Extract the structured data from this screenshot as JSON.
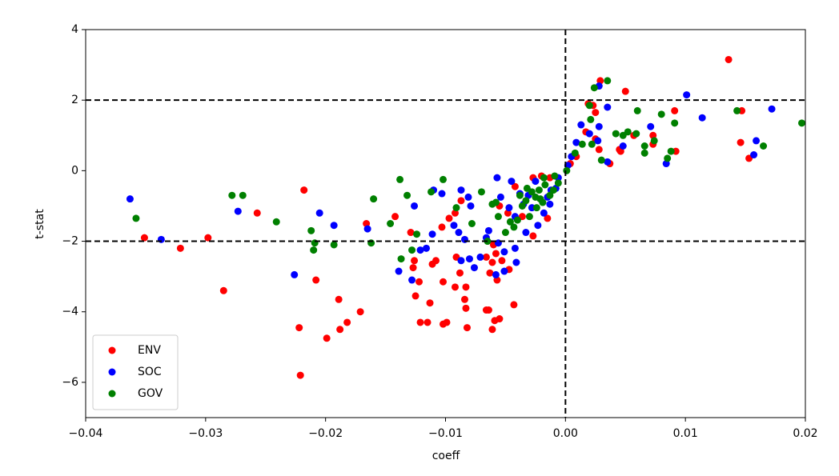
{
  "chart_data": {
    "type": "scatter",
    "xlabel": "coeff",
    "ylabel": "t-stat",
    "xlim": [
      -0.04,
      0.02
    ],
    "xticks": [
      {
        "value": -0.04,
        "label": "−0.04"
      },
      {
        "value": -0.03,
        "label": "−0.03"
      },
      {
        "value": -0.02,
        "label": "−0.02"
      },
      {
        "value": -0.01,
        "label": "−0.01"
      },
      {
        "value": 0,
        "label": "0.00"
      },
      0.01,
      0.02
    ],
    "ylim": [
      -7,
      4
    ],
    "yticks": [
      {
        "value": -6,
        "label": "−6"
      },
      {
        "value": -4,
        "label": "−4"
      },
      {
        "value": -2,
        "label": "−2"
      },
      0,
      2,
      4
    ],
    "hlines": [
      2,
      -2
    ],
    "vlines": [
      0
    ],
    "legend": "lower left",
    "series": [
      {
        "name": "ENV",
        "color": "#ff0000",
        "x": [
          0.0136,
          0.0029,
          0.005,
          0.0023,
          0.0025,
          0.0019,
          0.0147,
          0.0091,
          0.0146,
          0.0153,
          0.0073,
          0.0073,
          0.0092,
          0.0057,
          0.0045,
          0.0037,
          0.0025,
          0.0017,
          0.0009,
          0.0004,
          -0.0013,
          -0.0015,
          -0.0027,
          -0.0036,
          -0.0042,
          -0.0048,
          -0.0055,
          -0.006,
          -0.0061,
          -0.0053,
          -0.0047,
          -0.0057,
          -0.0058,
          -0.0063,
          -0.0066,
          -0.0066,
          -0.0064,
          -0.0059,
          -0.0055,
          -0.0061,
          -0.0043,
          -0.0082,
          -0.0083,
          -0.0084,
          -0.0083,
          -0.0088,
          -0.0092,
          -0.0091,
          -0.0102,
          -0.0108,
          -0.0111,
          -0.0113,
          -0.0115,
          -0.0121,
          -0.0102,
          -0.0099,
          -0.0125,
          -0.0127,
          -0.0126,
          -0.0122,
          -0.0129,
          -0.0142,
          -0.0103,
          -0.0097,
          -0.0092,
          -0.0087,
          -0.0171,
          -0.0182,
          -0.0188,
          -0.0199,
          -0.0222,
          -0.0221,
          -0.0189,
          -0.0208,
          -0.0285,
          -0.0321,
          -0.0298,
          -0.0351,
          -0.0257,
          -0.0218,
          -0.0166,
          -0.0027,
          -0.002,
          0.0028,
          0.0046
        ],
        "y": [
          3.15,
          2.55,
          2.25,
          1.85,
          1.65,
          1.9,
          1.7,
          1.7,
          0.8,
          0.35,
          0.75,
          1.0,
          0.55,
          1.0,
          0.6,
          0.2,
          0.9,
          1.1,
          0.4,
          0.2,
          -0.2,
          -1.35,
          -1.85,
          -1.3,
          -0.45,
          -1.2,
          -1.0,
          -2.1,
          -2.6,
          -2.55,
          -2.8,
          -3.1,
          -2.35,
          -2.9,
          -2.45,
          -3.95,
          -3.95,
          -4.25,
          -4.2,
          -4.5,
          -3.8,
          -4.45,
          -3.9,
          -3.65,
          -3.3,
          -2.9,
          -3.3,
          -2.45,
          -3.15,
          -2.55,
          -2.65,
          -3.75,
          -4.3,
          -4.3,
          -4.35,
          -4.3,
          -3.55,
          -2.75,
          -2.55,
          -3.15,
          -1.75,
          -1.3,
          -1.6,
          -1.35,
          -1.2,
          -0.85,
          -4.0,
          -4.3,
          -4.5,
          -4.75,
          -4.45,
          -5.8,
          -3.65,
          -3.1,
          -3.4,
          -2.2,
          -1.9,
          -1.9,
          -1.2,
          -0.55,
          -1.5,
          -0.2,
          -0.15,
          0.6,
          0.55
        ]
      },
      {
        "name": "SOC",
        "color": "#0000ff",
        "x": [
          0.0101,
          0.0028,
          0.0114,
          0.0172,
          0.0035,
          0.0071,
          0.0159,
          0.0157,
          0.0084,
          0.0048,
          0.0035,
          0.0028,
          0.0027,
          0.002,
          0.0013,
          0.0009,
          0.0005,
          0.0002,
          -0.0006,
          -0.0012,
          -0.0013,
          -0.0018,
          -0.0023,
          -0.0031,
          -0.0033,
          -0.0038,
          -0.0042,
          -0.0042,
          -0.0041,
          -0.0047,
          -0.0054,
          -0.0057,
          -0.0051,
          -0.0056,
          -0.0058,
          -0.0051,
          -0.0064,
          -0.0066,
          -0.0071,
          -0.0076,
          -0.008,
          -0.0084,
          -0.0087,
          -0.0089,
          -0.0093,
          -0.0079,
          -0.0081,
          -0.0087,
          -0.0103,
          -0.0111,
          -0.0116,
          -0.0121,
          -0.0128,
          -0.0139,
          -0.0126,
          -0.011,
          -0.0165,
          -0.0193,
          -0.0205,
          -0.0226,
          -0.0273,
          -0.0337,
          -0.0363,
          -0.0025,
          -0.0008,
          -0.0035,
          -0.0028,
          -0.0015,
          -0.0045
        ],
        "y": [
          2.15,
          2.4,
          1.5,
          1.75,
          1.8,
          1.25,
          0.85,
          0.45,
          0.2,
          0.7,
          0.25,
          1.25,
          0.85,
          1.05,
          1.3,
          0.8,
          0.4,
          0.15,
          -0.2,
          -0.55,
          -0.95,
          -1.2,
          -1.55,
          -0.7,
          -1.75,
          -0.65,
          -1.3,
          -2.2,
          -2.6,
          -1.05,
          -0.75,
          -0.2,
          -2.3,
          -2.05,
          -2.95,
          -2.85,
          -1.7,
          -1.9,
          -2.45,
          -2.75,
          -2.5,
          -1.95,
          -2.55,
          -1.75,
          -1.55,
          -1.0,
          -0.75,
          -0.55,
          -0.65,
          -1.8,
          -2.2,
          -2.25,
          -3.1,
          -2.85,
          -1.0,
          -0.55,
          -1.65,
          -1.55,
          -1.2,
          -2.95,
          -1.15,
          -1.95,
          -0.8,
          -0.3,
          -0.5,
          -0.95,
          -1.05,
          -0.75,
          -0.3
        ]
      },
      {
        "name": "GOV",
        "color": "#008000",
        "x": [
          0.0035,
          0.0024,
          0.002,
          0.0021,
          0.0143,
          0.0197,
          0.0165,
          0.0091,
          0.008,
          0.006,
          0.0052,
          0.0042,
          0.0048,
          0.0059,
          0.0066,
          0.0074,
          0.0066,
          0.0085,
          0.0088,
          0.003,
          0.0022,
          0.0014,
          0.0008,
          0.0001,
          -0.0006,
          -0.001,
          -0.0013,
          -0.0017,
          -0.0019,
          -0.0022,
          -0.0024,
          -0.0025,
          -0.0028,
          -0.003,
          -0.0033,
          -0.0036,
          -0.0038,
          -0.004,
          -0.0043,
          -0.0046,
          -0.005,
          -0.0056,
          -0.0058,
          -0.0061,
          -0.0065,
          -0.007,
          -0.0078,
          -0.0091,
          -0.0102,
          -0.0112,
          -0.0124,
          -0.0128,
          -0.0137,
          -0.0138,
          -0.0132,
          -0.0146,
          -0.016,
          -0.0162,
          -0.0193,
          -0.0209,
          -0.021,
          -0.0212,
          -0.0241,
          -0.0269,
          -0.0278,
          -0.0358,
          -0.0018,
          -0.0009,
          -0.0032,
          -0.0021
        ],
        "y": [
          2.55,
          2.35,
          1.85,
          1.45,
          1.7,
          1.35,
          0.7,
          1.35,
          1.6,
          1.7,
          1.1,
          1.05,
          1.0,
          1.05,
          0.7,
          0.85,
          0.5,
          0.35,
          0.55,
          0.3,
          0.75,
          0.75,
          0.5,
          0.0,
          -0.35,
          -0.55,
          -0.7,
          -0.4,
          -0.9,
          -0.55,
          -1.05,
          -0.75,
          -0.6,
          -1.3,
          -0.85,
          -1.0,
          -0.7,
          -1.4,
          -1.6,
          -1.45,
          -1.75,
          -1.3,
          -0.9,
          -0.95,
          -2.0,
          -0.6,
          -1.5,
          -1.05,
          -0.25,
          -0.6,
          -1.8,
          -2.25,
          -2.5,
          -0.25,
          -0.7,
          -1.5,
          -0.8,
          -2.05,
          -2.1,
          -2.05,
          -2.25,
          -1.7,
          -1.45,
          -0.7,
          -0.7,
          -1.35,
          -0.2,
          -0.15,
          -0.5,
          -0.8
        ]
      }
    ]
  }
}
